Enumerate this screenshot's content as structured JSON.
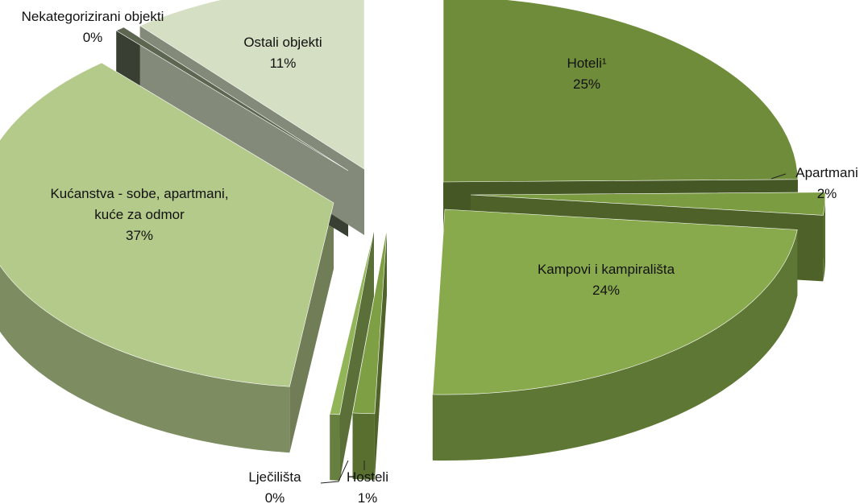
{
  "chart_data": {
    "type": "pie",
    "title": "",
    "style": "3d-exploded",
    "slices": [
      {
        "name": "Hoteli",
        "value": 25,
        "label_lines": [
          "Hoteli¹",
          "25%"
        ],
        "color": "#6f8c3a"
      },
      {
        "name": "Apartmani",
        "value": 2,
        "label_lines": [
          "Apartmani",
          "2%"
        ],
        "color": "#7c9c42"
      },
      {
        "name": "Kampovi i kampirališta",
        "value": 24,
        "label_lines": [
          "Kampovi i kampirališta",
          "24%"
        ],
        "color": "#88aa4c"
      },
      {
        "name": "Hosteli",
        "value": 1,
        "label_lines": [
          "Hosteli",
          "1%"
        ],
        "color": "#7f9f45"
      },
      {
        "name": "Lječilišta",
        "value": 0,
        "label_lines": [
          "Lječilišta",
          "0%"
        ],
        "color": "#93b55a"
      },
      {
        "name": "Kućanstva - sobe, apartmani, kuće za odmor",
        "value": 37,
        "label_lines": [
          "Kućanstva - sobe, apartmani,",
          "kuće za odmor",
          "37%"
        ],
        "color": "#b4ca8a"
      },
      {
        "name": "Nekategorizirani objekti",
        "value": 0,
        "label_lines": [
          "Nekategorizirani objekti",
          "0%"
        ],
        "color": "#5c6650"
      },
      {
        "name": "Ostali objekti",
        "value": 11,
        "label_lines": [
          "Ostali objekti",
          "11%"
        ],
        "color": "#d5dfc3"
      }
    ]
  }
}
